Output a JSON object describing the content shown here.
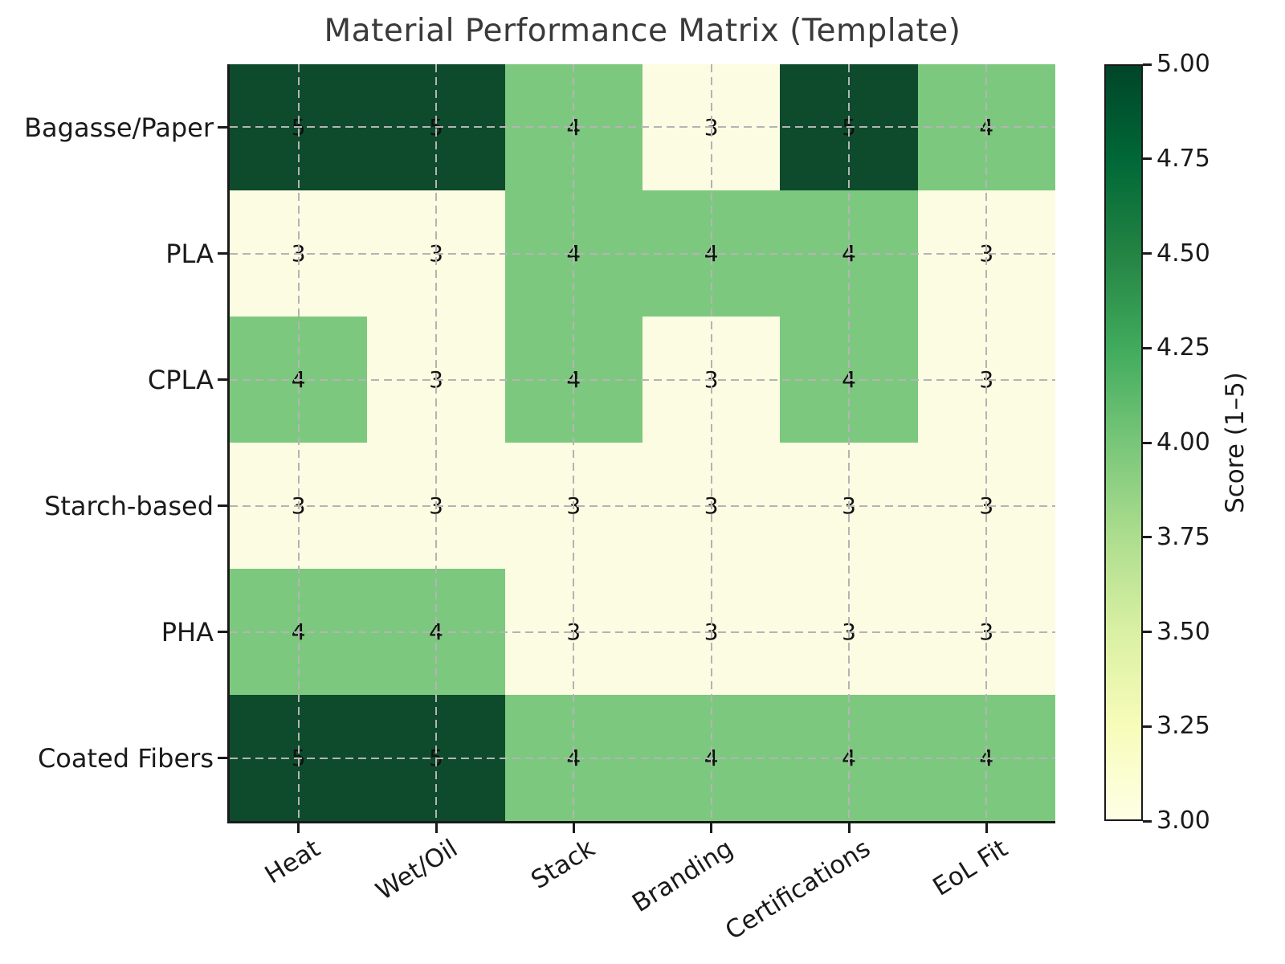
{
  "title": "Material Performance Matrix (Template)",
  "chart_data": {
    "type": "heatmap",
    "rows": [
      "Bagasse/Paper",
      "PLA",
      "CPLA",
      "Starch-based",
      "PHA",
      "Coated Fibers"
    ],
    "columns": [
      "Heat",
      "Wet/Oil",
      "Stack",
      "Branding",
      "Certifications",
      "EoL Fit"
    ],
    "values": [
      [
        5,
        5,
        4,
        3,
        5,
        4
      ],
      [
        3,
        3,
        4,
        4,
        4,
        3
      ],
      [
        4,
        3,
        4,
        3,
        4,
        3
      ],
      [
        3,
        3,
        3,
        3,
        3,
        3
      ],
      [
        4,
        4,
        3,
        3,
        3,
        3
      ],
      [
        5,
        5,
        4,
        4,
        4,
        4
      ]
    ],
    "value_range": [
      3,
      5
    ],
    "grid": true,
    "annotations_shown": true,
    "score_colors": {
      "3": "#fbfce2",
      "4": "#7dc87f",
      "5": "#0e4b2c"
    },
    "colorbar": {
      "label": "Score (1–5)",
      "ticks": [
        "5.00",
        "4.75",
        "4.50",
        "4.25",
        "4.00",
        "3.75",
        "3.50",
        "3.25",
        "3.00"
      ],
      "gradient_top_to_bottom": [
        "#004529",
        "#006837",
        "#238443",
        "#41ab5d",
        "#78c679",
        "#addd8e",
        "#d9f0a3",
        "#f7fcb9",
        "#ffffe5"
      ],
      "position": "right"
    },
    "colors": {
      "gridline": "#b4b4b4",
      "spine": "#1a1a1a",
      "title_text": "#3a3a3a",
      "label_text": "#1a1a1a",
      "annotation_text": "#111111",
      "background": "#ffffff"
    }
  }
}
